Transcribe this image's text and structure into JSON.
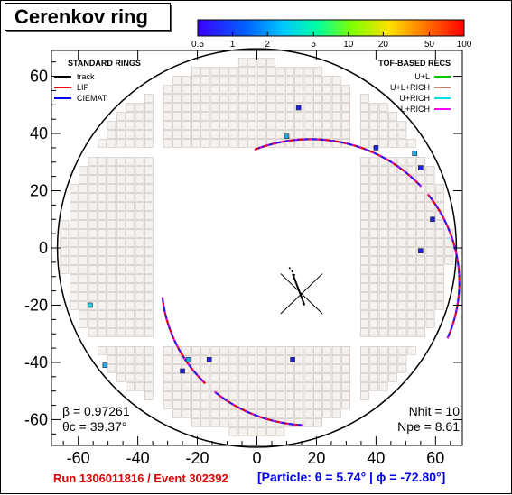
{
  "title": "Cerenkov ring",
  "colorbar": {
    "ticks": [
      "0.5",
      "1",
      "2",
      "5",
      "10",
      "20",
      "50",
      "100"
    ],
    "tick_values": [
      0.5,
      1,
      2,
      5,
      10,
      20,
      50,
      100
    ],
    "scale": "log",
    "range": [
      0.5,
      100
    ]
  },
  "legend_left": {
    "title": "STANDARD RINGS",
    "entries": [
      {
        "label": "track",
        "color": "#000000"
      },
      {
        "label": "LIP",
        "color": "#ff0000"
      },
      {
        "label": "CIEMAT",
        "color": "#0000ff"
      }
    ]
  },
  "legend_right": {
    "title": "TOF-BASED RECS",
    "entries": [
      {
        "label": "U+L",
        "color": "#00cc00"
      },
      {
        "label": "U+L+RICH",
        "color": "#d08060"
      },
      {
        "label": "U+RICH",
        "color": "#00e0e0"
      },
      {
        "label": "L+RICH",
        "color": "#ff00ff"
      }
    ]
  },
  "annotations": {
    "beta": "β = 0.97261",
    "theta_c": "θc = 39.37°",
    "nhit": "Nhit = 10",
    "npe": "Npe = 8.61"
  },
  "footer": {
    "run_event": "Run 1306011816 / Event 302392",
    "particle": "[Particle: θ = 5.74° | ϕ = -72.80°]"
  },
  "chart_data": {
    "type": "scatter",
    "title": "Cerenkov ring",
    "xlabel": "",
    "ylabel": "",
    "xlim": [
      -69,
      69
    ],
    "ylim": [
      -69,
      69
    ],
    "x_ticks": [
      -60,
      -40,
      -20,
      0,
      20,
      40,
      60
    ],
    "y_ticks": [
      -60,
      -40,
      -20,
      0,
      20,
      40,
      60
    ],
    "outer_circle_radius": 67,
    "hits": [
      {
        "x": 14,
        "y": 49,
        "color": "#2222dd"
      },
      {
        "x": 10,
        "y": 39,
        "color": "#22aadd"
      },
      {
        "x": 40,
        "y": 35,
        "color": "#2222dd"
      },
      {
        "x": 53,
        "y": 33,
        "color": "#22aadd"
      },
      {
        "x": 55,
        "y": 28,
        "color": "#2222dd"
      },
      {
        "x": 59,
        "y": 10,
        "color": "#2222dd"
      },
      {
        "x": 55,
        "y": -1,
        "color": "#2222dd"
      },
      {
        "x": -56,
        "y": -20,
        "color": "#22ccdd"
      },
      {
        "x": -51,
        "y": -41,
        "color": "#22aadd"
      },
      {
        "x": -23,
        "y": -39,
        "color": "#22aadd"
      },
      {
        "x": -25,
        "y": -43,
        "color": "#2222dd"
      },
      {
        "x": -16,
        "y": -39,
        "color": "#2222dd"
      },
      {
        "x": 12,
        "y": -39,
        "color": "#2222dd"
      }
    ],
    "ring": {
      "cx": 18,
      "cy": -12,
      "r": 50
    },
    "track": {
      "x0": 12,
      "y0": -9,
      "x1": 16,
      "y1": -20
    },
    "cross_center": {
      "x": 15,
      "y": -16
    }
  }
}
